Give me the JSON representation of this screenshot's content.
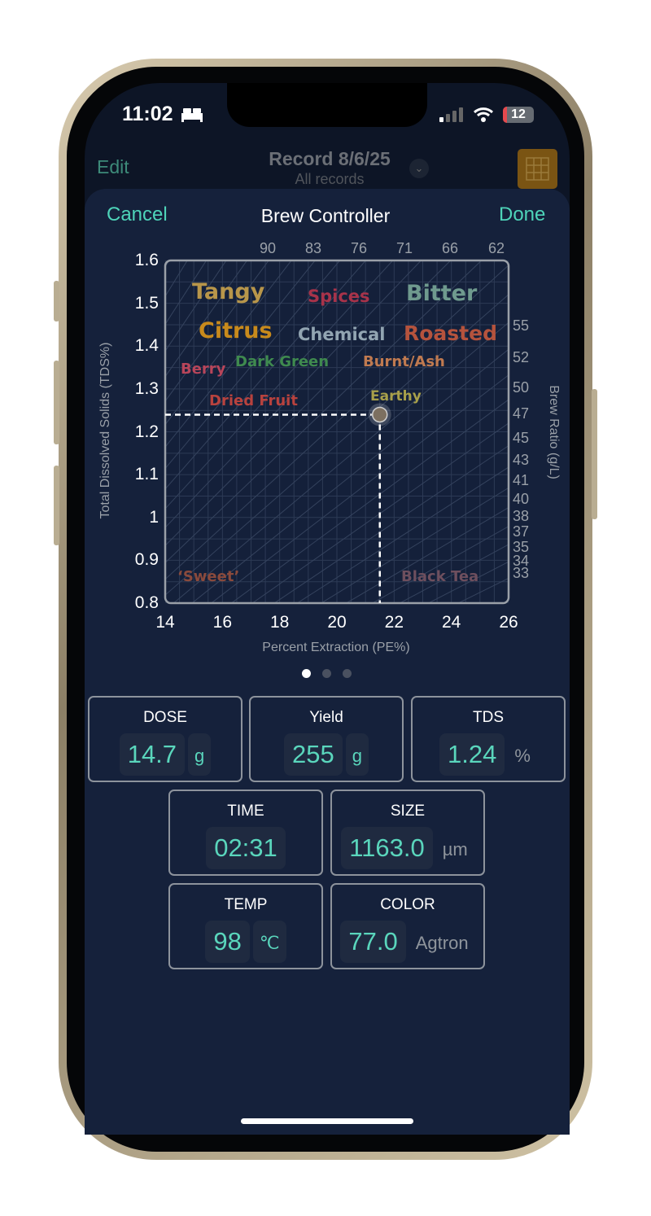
{
  "status_bar": {
    "time": "11:02",
    "sleep_icon": "bed-icon",
    "battery": "12",
    "battery_color": "#e5484d"
  },
  "header": {
    "edit_label": "Edit",
    "title": "Record 8/6/25",
    "subtitle": "All records",
    "grid_button_color": "#7a5413"
  },
  "sheet": {
    "cancel_label": "Cancel",
    "title": "Brew Controller",
    "done_label": "Done"
  },
  "chart_data": {
    "type": "scatter",
    "xlabel": "Percent Extraction (PE%)",
    "ylabel": "Total Dissolved Solids (TDS%)",
    "y2label": "Brew Ratio (g/L)",
    "xlim": [
      14,
      26
    ],
    "ylim": [
      0.8,
      1.6
    ],
    "x_ticks": [
      "14",
      "16",
      "18",
      "20",
      "22",
      "24",
      "26"
    ],
    "y_ticks": [
      "1.6",
      "1.5",
      "1.4",
      "1.3",
      "1.2",
      "1.1",
      "1",
      "0.9",
      "0.8"
    ],
    "top_ratio_ticks": [
      "90",
      "83",
      "76",
      "71",
      "66",
      "62"
    ],
    "right_ratio_ticks": [
      "55",
      "52",
      "50",
      "47",
      "45",
      "43",
      "41",
      "40",
      "38",
      "37",
      "35",
      "34",
      "33"
    ],
    "grid": true,
    "point": {
      "x": 21.5,
      "y": 1.24,
      "color": "#7d7060"
    },
    "flavor_labels": [
      {
        "text": "Tangy",
        "color": "#b8964a"
      },
      {
        "text": "Spices",
        "color": "#a8334a"
      },
      {
        "text": "Bitter",
        "color": "#6f9a8e"
      },
      {
        "text": "Citrus",
        "color": "#c88a1c"
      },
      {
        "text": "Chemical",
        "color": "#92a5b2"
      },
      {
        "text": "Roasted",
        "color": "#b5533d"
      },
      {
        "text": "Berry",
        "color": "#b8455a"
      },
      {
        "text": "Dark Green",
        "color": "#3f8a4f"
      },
      {
        "text": "Burnt/Ash",
        "color": "#c07a50"
      },
      {
        "text": "Dried Fruit",
        "color": "#b8423e"
      },
      {
        "text": "Earthy",
        "color": "#a8a04a"
      },
      {
        "text": "‘Sweet’",
        "color": "#8a4a3c"
      },
      {
        "text": "Black Tea",
        "color": "#6e4f5e"
      }
    ]
  },
  "pager": {
    "pages": 3,
    "active": 0
  },
  "cards": {
    "dose": {
      "label": "DOSE",
      "value": "14.7",
      "unit": "g"
    },
    "yield": {
      "label": "Yield",
      "value": "255",
      "unit": "g"
    },
    "tds": {
      "label": "TDS",
      "value": "1.24",
      "unit": "%"
    },
    "time": {
      "label": "TIME",
      "value": "02:31"
    },
    "size": {
      "label": "SIZE",
      "value": "1163.0",
      "unit": "µm"
    },
    "temp": {
      "label": "TEMP",
      "value": "98",
      "unit": "℃"
    },
    "color": {
      "label": "COLOR",
      "value": "77.0",
      "unit": "Agtron"
    }
  },
  "accent_color": "#4ed4b9"
}
